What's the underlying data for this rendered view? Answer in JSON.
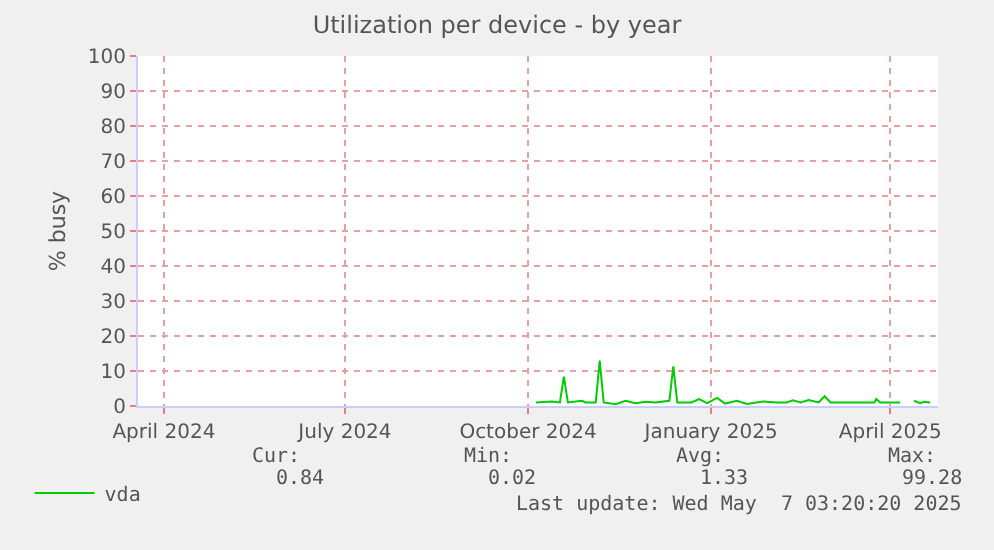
{
  "chart_data": {
    "type": "line",
    "title": "Utilization per device - by year",
    "ylabel": "% busy",
    "xlim": [
      "2024-03-19",
      "2025-04-25"
    ],
    "xticks": [
      {
        "value": "2024-04-01",
        "label": "April 2024"
      },
      {
        "value": "2024-07-01",
        "label": "July 2024"
      },
      {
        "value": "2024-10-01",
        "label": "October 2024"
      },
      {
        "value": "2025-01-01",
        "label": "January 2025"
      },
      {
        "value": "2025-04-01",
        "label": "April 2025"
      }
    ],
    "ylim": [
      0,
      100
    ],
    "yticks": [
      0,
      10,
      20,
      30,
      40,
      50,
      60,
      70,
      80,
      90,
      100
    ],
    "grid": true,
    "legend": "bottom left",
    "marker": "none",
    "line_style": "solid",
    "x": [
      "2024-10-05",
      "2024-10-13",
      "2024-10-17",
      "2024-10-19",
      "2024-10-21",
      "2024-10-28",
      "2024-10-30",
      "2024-11-04",
      "2024-11-06",
      "2024-11-08",
      "2024-11-14",
      "2024-11-19",
      "2024-11-24",
      "2024-11-29",
      "2024-12-04",
      "2024-12-11",
      "2024-12-13",
      "2024-12-15",
      "2024-12-22",
      "2024-12-26",
      "2024-12-30",
      "2025-01-04",
      "2025-01-08",
      "2025-01-14",
      "2025-01-19",
      "2025-01-27",
      "2025-02-03",
      "2025-02-08",
      "2025-02-11",
      "2025-02-15",
      "2025-02-19",
      "2025-02-24",
      "2025-02-27",
      "2025-03-02",
      "2025-03-13",
      "2025-03-24",
      "2025-03-25",
      "2025-03-27",
      "2025-04-06"
    ],
    "series": [
      {
        "name": "vda",
        "color": "#00cc00",
        "values": [
          1.0,
          1.3,
          1.0,
          8.4,
          1.0,
          1.5,
          1.0,
          1.0,
          13,
          1.0,
          0.5,
          1.5,
          0.8,
          1.2,
          1.0,
          1.5,
          11.3,
          1.0,
          1.0,
          2.0,
          0.8,
          2.3,
          0.7,
          1.5,
          0.6,
          1.3,
          1.0,
          1.0,
          1.6,
          1.0,
          1.7,
          1.0,
          2.8,
          1.0,
          1.0,
          1.0,
          2.0,
          1.0,
          1.0
        ]
      },
      {
        "color": "#00cc00",
        "x": [
          "2025-04-13",
          "2025-04-16",
          "2025-04-18",
          "2025-04-21"
        ],
        "values": [
          1.5,
          0.8,
          1.2,
          1.0
        ]
      }
    ],
    "annotations": [
      "Cur:",
      "Min:",
      "Avg:",
      "Max:",
      "0.84",
      "0.02",
      "1.33",
      "99.28",
      "Last update: Wed May  7 03:20:20 2025"
    ]
  }
}
